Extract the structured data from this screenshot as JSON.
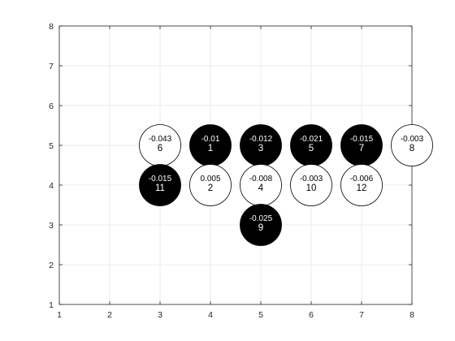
{
  "game": {
    "axes": {
      "xlim": [
        1,
        8
      ],
      "ylim": [
        1,
        8
      ],
      "x_ticks": [
        "1",
        "2",
        "3",
        "4",
        "5",
        "6",
        "7",
        "8"
      ],
      "y_ticks": [
        "1",
        "2",
        "3",
        "4",
        "5",
        "6",
        "7",
        "8"
      ],
      "grid": true,
      "box": true
    },
    "colors": {
      "black_stone": "#000000",
      "white_stone": "#ffffff",
      "stone_edge": "#000000",
      "grid": "#e6e6e6",
      "axis": "#262626"
    },
    "stones": [
      {
        "move": "1",
        "value": "-0.01",
        "x": 4,
        "y": 5,
        "color": "black"
      },
      {
        "move": "2",
        "value": "0.005",
        "x": 4,
        "y": 4,
        "color": "white"
      },
      {
        "move": "3",
        "value": "-0.012",
        "x": 5,
        "y": 5,
        "color": "black"
      },
      {
        "move": "4",
        "value": "-0.008",
        "x": 5,
        "y": 4,
        "color": "white"
      },
      {
        "move": "5",
        "value": "-0.021",
        "x": 6,
        "y": 5,
        "color": "black"
      },
      {
        "move": "6",
        "value": "-0.043",
        "x": 3,
        "y": 5,
        "color": "white"
      },
      {
        "move": "7",
        "value": "-0.015",
        "x": 7,
        "y": 5,
        "color": "black"
      },
      {
        "move": "8",
        "value": "-0.003",
        "x": 8,
        "y": 5,
        "color": "white"
      },
      {
        "move": "9",
        "value": "-0.025",
        "x": 5,
        "y": 3,
        "color": "black"
      },
      {
        "move": "10",
        "value": "-0.003",
        "x": 6,
        "y": 4,
        "color": "white"
      },
      {
        "move": "11",
        "value": "-0.015",
        "x": 3,
        "y": 4,
        "color": "black"
      },
      {
        "move": "12",
        "value": "-0.006",
        "x": 7,
        "y": 4,
        "color": "white"
      }
    ]
  }
}
